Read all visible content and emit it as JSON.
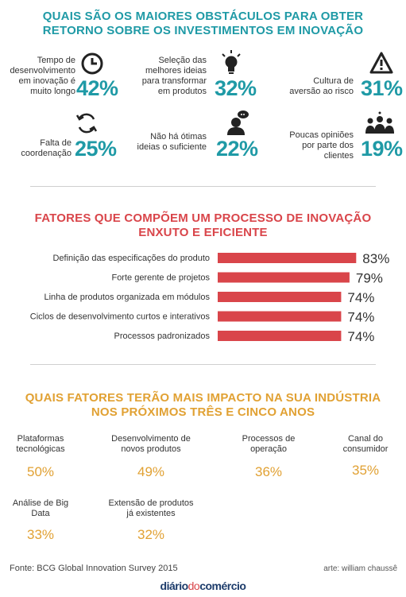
{
  "sec1": {
    "title_line1": "QUAIS SÃO OS MAIORES OBSTÁCULOS PARA OBTER",
    "title_line2": "RETORNO SOBRE OS INVESTIMENTOS EM INOVAÇÃO",
    "items": [
      {
        "label": [
          "Tempo de",
          "desenvolvimento",
          "em inovação é",
          "muito longo"
        ],
        "value": "42%",
        "icon": "clock-icon"
      },
      {
        "label": [
          "Seleção das",
          "melhores ideias",
          "para transformar",
          "em produtos"
        ],
        "value": "32%",
        "icon": "lightbulb-icon"
      },
      {
        "label": [
          "Cultura de",
          "aversão ao risco"
        ],
        "value": "31%",
        "icon": "warning-icon"
      },
      {
        "label": [
          "Falta de",
          "coordenação"
        ],
        "value": "25%",
        "icon": "refresh-icon"
      },
      {
        "label": [
          "Não há ótimas",
          "ideias o suficiente"
        ],
        "value": "22%",
        "icon": "thinking-person-icon"
      },
      {
        "label": [
          "Poucas opiniões",
          "por parte dos",
          "clientes"
        ],
        "value": "19%",
        "icon": "people-icon"
      }
    ]
  },
  "sec2": {
    "title_line1": "FATORES QUE COMPÕEM UM PROCESSO DE INOVAÇÃO",
    "title_line2": "ENXUTO E EFICIENTE"
  },
  "sec3": {
    "title_line1": "QUAIS FATORES TERÃO MAIS IMPACTO NA SUA INDÚSTRIA",
    "title_line2": "NOS PRÓXIMOS TRÊS E CINCO ANOS",
    "items": [
      {
        "label": [
          "Plataformas",
          "tecnológicas"
        ],
        "value": "50%"
      },
      {
        "label": [
          "Desenvolvimento de",
          "novos produtos"
        ],
        "value": "49%"
      },
      {
        "label": [
          "Processos de",
          "operação"
        ],
        "value": "36%"
      },
      {
        "label": [
          "Canal do",
          "consumidor"
        ],
        "value": "35%"
      },
      {
        "label": [
          "Análise de Big",
          "Data"
        ],
        "value": "33%"
      },
      {
        "label": [
          "Extensão de produtos",
          "já existentes"
        ],
        "value": "32%"
      }
    ]
  },
  "footer": {
    "source": "Fonte: BCG Global Innovation Survey 2015",
    "credit": "arte: william chaussê",
    "logo_a": "diário",
    "logo_b": "do",
    "logo_c": "comércio"
  },
  "colors": {
    "teal": "#1f9aa6",
    "red": "#d9454a",
    "orange": "#e1a133"
  },
  "chart_data": [
    {
      "type": "bar",
      "title": "QUAIS SÃO OS MAIORES OBSTÁCULOS PARA OBTER RETORNO SOBRE OS INVESTIMENTOS EM INOVAÇÃO",
      "categories": [
        "Tempo de desenvolvimento em inovação é muito longo",
        "Seleção das melhores ideias para transformar em produtos",
        "Cultura de aversão ao risco",
        "Falta de coordenação",
        "Não há ótimas ideias o suficiente",
        "Poucas opiniões por parte dos clientes"
      ],
      "values": [
        42,
        32,
        31,
        25,
        22,
        19
      ]
    },
    {
      "type": "bar",
      "orientation": "horizontal",
      "title": "FATORES QUE COMPÕEM UM PROCESSO DE INOVAÇÃO ENXUTO E EFICIENTE",
      "categories": [
        "Definição das especificações do produto",
        "Forte gerente de projetos",
        "Linha de produtos organizada em módulos",
        "Ciclos de desenvolvimento curtos e interativos",
        "Processos padronizados"
      ],
      "values": [
        83,
        79,
        74,
        74,
        74
      ],
      "value_labels": [
        "83%",
        "79%",
        "74%",
        "74%",
        "74%"
      ],
      "color": "#d9454a"
    },
    {
      "type": "bar",
      "title": "QUAIS FATORES TERÃO MAIS IMPACTO NA SUA INDÚSTRIA NOS PRÓXIMOS TRÊS E CINCO ANOS",
      "categories": [
        "Plataformas tecnológicas",
        "Desenvolvimento de novos produtos",
        "Processos de operação",
        "Canal do consumidor",
        "Análise de Big Data",
        "Extensão de produtos já existentes"
      ],
      "values": [
        50,
        49,
        36,
        35,
        33,
        32
      ]
    }
  ]
}
